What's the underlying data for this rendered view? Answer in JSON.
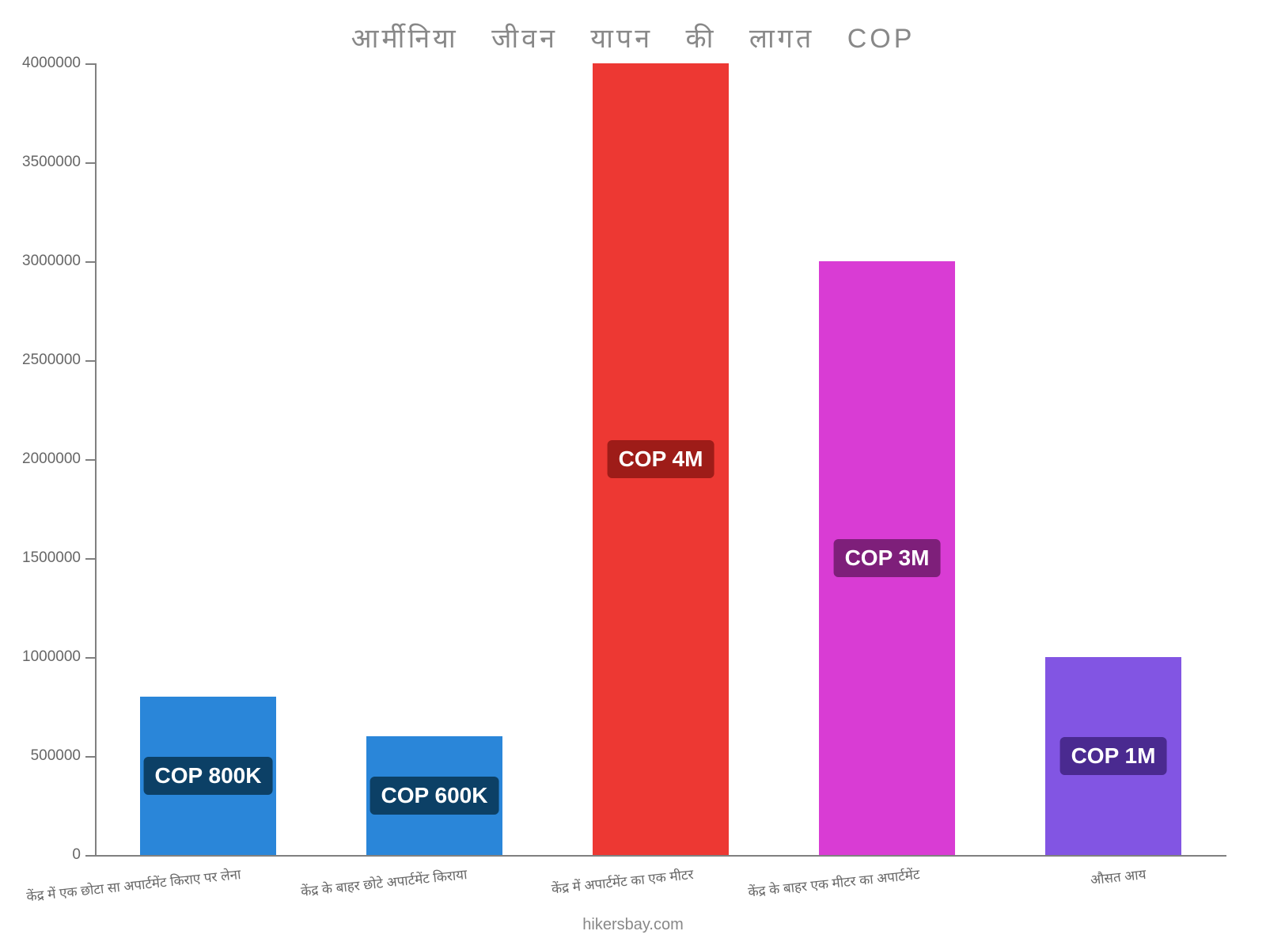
{
  "chart": {
    "type": "bar",
    "title": "आर्मीनिया जीवन यापन की लागत COP",
    "title_fontsize": 34,
    "title_color": "#888888",
    "attribution": "hikersbay.com",
    "attribution_fontsize": 20,
    "attribution_color": "#888888",
    "background_color": "#ffffff",
    "axis_color": "#808080",
    "tick_label_color": "#666666",
    "tick_fontsize": 19,
    "x_label_fontsize": 17,
    "ylim_min": 0,
    "ylim_max": 4000000,
    "ytick_step": 500000,
    "yticks": [
      0,
      500000,
      1000000,
      1500000,
      2000000,
      2500000,
      3000000,
      3500000,
      4000000
    ],
    "categories": [
      "केंद्र में एक छोटा सा अपार्टमेंट किराए पर लेना",
      "केंद्र के बाहर छोटे अपार्टमेंट किराया",
      "केंद्र में अपार्टमेंट का एक मीटर",
      "केंद्र के बाहर एक मीटर का अपार्टमेंट",
      "औसत आय"
    ],
    "values": [
      800000,
      600000,
      4000000,
      3000000,
      1000000
    ],
    "bar_colors": [
      "#2a86d9",
      "#2a86d9",
      "#ed3833",
      "#d93cd4",
      "#8255e3"
    ],
    "value_labels": [
      "COP 800K",
      "COP 600K",
      "COP 4M",
      "COP 3M",
      "COP 1M"
    ],
    "label_bg_colors": [
      "#0c4066",
      "#0c4066",
      "#9e1c18",
      "#7e1f7a",
      "#4a2a90"
    ],
    "label_fontsize": 28,
    "bar_width_ratio": 0.6
  }
}
